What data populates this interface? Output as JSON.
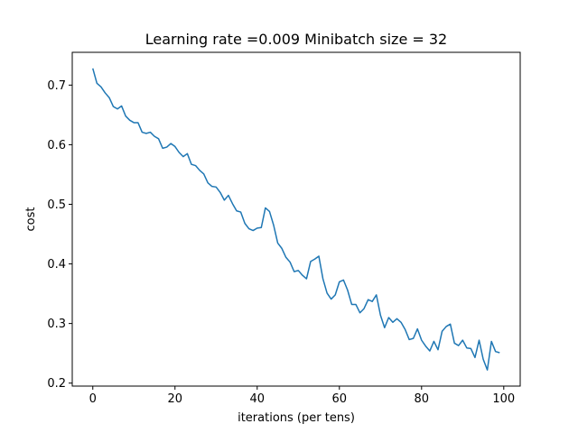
{
  "chart_data": {
    "type": "line",
    "title": "Learning rate =0.009 Minibatch size = 32",
    "xlabel": "iterations (per tens)",
    "ylabel": "cost",
    "xlim": [
      -5,
      104
    ],
    "ylim": [
      0.195,
      0.755
    ],
    "xticks": [
      0,
      20,
      40,
      60,
      80,
      100
    ],
    "yticks": [
      0.2,
      0.3,
      0.4,
      0.5,
      0.6,
      0.7
    ],
    "xtick_labels": [
      "0",
      "20",
      "40",
      "60",
      "80",
      "100"
    ],
    "ytick_labels": [
      "0.2",
      "0.3",
      "0.4",
      "0.5",
      "0.6",
      "0.7"
    ],
    "grid": false,
    "series": [
      {
        "color": "#1f77b4",
        "x": [
          0,
          1,
          2,
          3,
          4,
          5,
          6,
          7,
          8,
          9,
          10,
          11,
          12,
          13,
          14,
          15,
          16,
          17,
          18,
          19,
          20,
          21,
          22,
          23,
          24,
          25,
          26,
          27,
          28,
          29,
          30,
          31,
          32,
          33,
          34,
          35,
          36,
          37,
          38,
          39,
          40,
          41,
          42,
          43,
          44,
          45,
          46,
          47,
          48,
          49,
          50,
          51,
          52,
          53,
          54,
          55,
          56,
          57,
          58,
          59,
          60,
          61,
          62,
          63,
          64,
          65,
          66,
          67,
          68,
          69,
          70,
          71,
          72,
          73,
          74,
          75,
          76,
          77,
          78,
          79,
          80,
          81,
          82,
          83,
          84,
          85,
          86,
          87,
          88,
          89,
          90,
          91,
          92,
          93,
          94,
          95,
          96,
          97,
          98,
          99
        ],
        "y": [
          0.728,
          0.703,
          0.697,
          0.687,
          0.679,
          0.664,
          0.66,
          0.665,
          0.648,
          0.641,
          0.637,
          0.637,
          0.621,
          0.619,
          0.621,
          0.614,
          0.61,
          0.594,
          0.596,
          0.602,
          0.597,
          0.587,
          0.58,
          0.585,
          0.567,
          0.565,
          0.557,
          0.551,
          0.536,
          0.53,
          0.529,
          0.52,
          0.507,
          0.515,
          0.501,
          0.489,
          0.487,
          0.468,
          0.459,
          0.456,
          0.46,
          0.461,
          0.494,
          0.488,
          0.465,
          0.435,
          0.426,
          0.411,
          0.403,
          0.387,
          0.389,
          0.381,
          0.375,
          0.404,
          0.408,
          0.413,
          0.375,
          0.351,
          0.341,
          0.348,
          0.37,
          0.373,
          0.356,
          0.332,
          0.332,
          0.318,
          0.325,
          0.34,
          0.337,
          0.348,
          0.314,
          0.293,
          0.31,
          0.302,
          0.308,
          0.302,
          0.29,
          0.273,
          0.275,
          0.291,
          0.272,
          0.262,
          0.254,
          0.27,
          0.256,
          0.287,
          0.295,
          0.299,
          0.267,
          0.263,
          0.272,
          0.259,
          0.258,
          0.243,
          0.272,
          0.24,
          0.222,
          0.27,
          0.253,
          0.251
        ]
      }
    ]
  }
}
